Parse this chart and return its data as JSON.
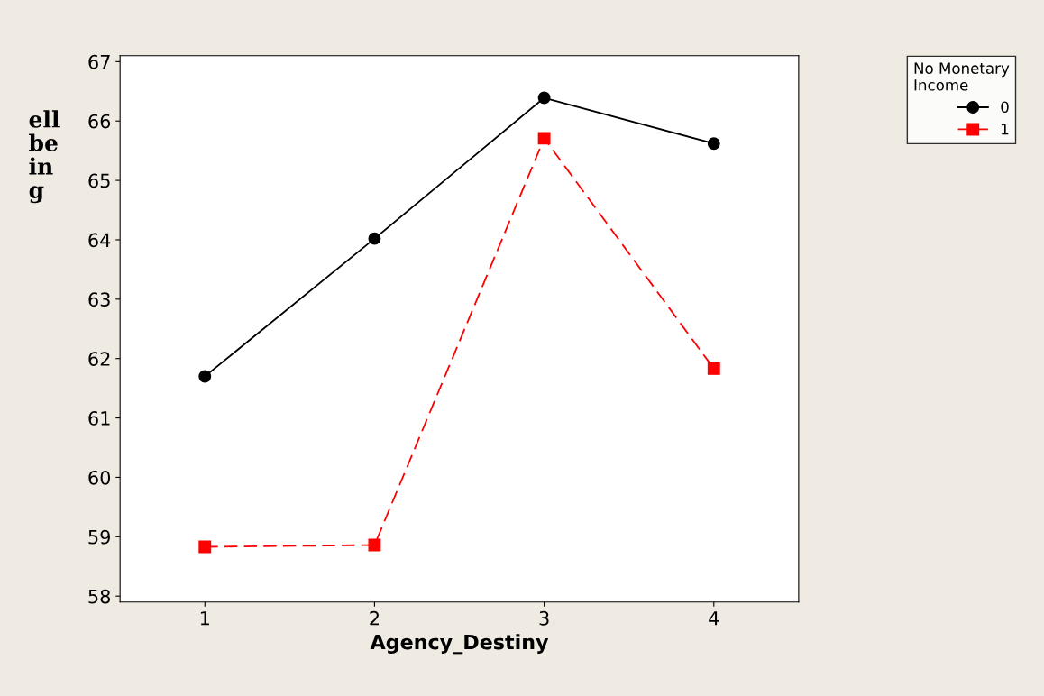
{
  "chart_data": {
    "type": "line",
    "xlabel": "Agency_Destiny",
    "ylabel": "ell\nbe\nin\ng",
    "legend_title": "No Monetary\nIncome",
    "categories": [
      "1",
      "2",
      "3",
      "4"
    ],
    "series": [
      {
        "name": "0",
        "color": "#000000",
        "values": [
          61.7,
          64.02,
          66.39,
          65.62
        ],
        "marker": "circle",
        "line_style": "solid"
      },
      {
        "name": "1",
        "color": "#ff0000",
        "values": [
          58.83,
          58.86,
          65.71,
          61.83
        ],
        "marker": "square",
        "line_style": "dashed"
      }
    ],
    "ylim": [
      57.9,
      67.1
    ],
    "yticks": [
      58,
      59,
      60,
      61,
      62,
      63,
      64,
      65,
      66,
      67
    ],
    "grid": false,
    "legend": "top right"
  }
}
